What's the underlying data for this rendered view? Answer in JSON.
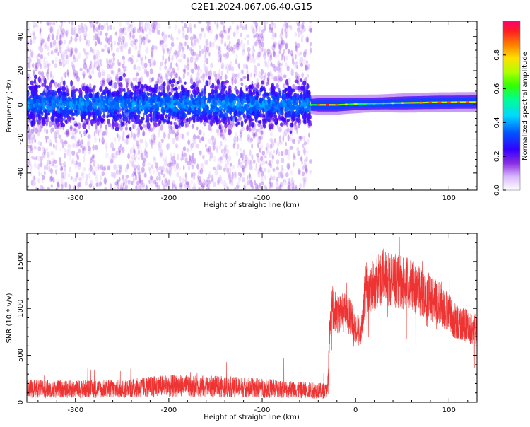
{
  "title": "C2E1.2024.067.06.40.G15",
  "chart_data": [
    {
      "type": "heatmap",
      "xlabel": "Height of straight line (km)",
      "ylabel": "Frequency (Hz)",
      "xlim": [
        -352,
        130
      ],
      "ylim": [
        -50,
        49
      ],
      "xticks": [
        -300,
        -200,
        -100,
        0,
        100
      ],
      "yticks": [
        -40,
        -20,
        0,
        20,
        40
      ],
      "noise_region_x": [
        -352,
        -48
      ],
      "signal_ridge": {
        "x": [
          -48,
          -40,
          -30,
          -20,
          -10,
          0,
          10,
          20,
          30,
          40,
          50,
          60,
          70,
          80,
          90,
          100,
          110,
          120,
          130
        ],
        "freq": [
          0,
          0,
          0,
          0,
          0.2,
          0.5,
          0.7,
          0.8,
          0.9,
          1.0,
          1.1,
          1.2,
          1.3,
          1.4,
          1.5,
          1.5,
          1.6,
          1.6,
          1.7
        ],
        "amplitude": [
          0.6,
          0.9,
          0.95,
          0.9,
          0.75,
          0.7,
          0.6,
          0.55,
          0.6,
          0.7,
          0.8,
          0.85,
          0.85,
          0.9,
          0.9,
          0.9,
          0.9,
          0.9,
          0.9
        ]
      },
      "colorbar": {
        "label": "Normalized spectral amplitude",
        "range": [
          0,
          1
        ],
        "ticks": [
          "0.0",
          "0.2",
          "0.4",
          "0.6",
          "0.8"
        ]
      }
    },
    {
      "type": "line",
      "xlabel": "Height of straight line (km)",
      "ylabel": "SNR (10 * v/v)",
      "xlim": [
        -352,
        130
      ],
      "ylim": [
        0,
        1800
      ],
      "xticks": [
        -300,
        -200,
        -100,
        0,
        100
      ],
      "yticks": [
        0,
        500,
        1000,
        1500
      ],
      "color": "#ee3333",
      "series": [
        {
          "x": [
            -352,
            -300,
            -250,
            -200,
            -150,
            -100,
            -50,
            -30,
            -28,
            -25,
            -20,
            -10,
            0,
            5,
            10,
            20,
            30,
            40,
            50,
            60,
            70,
            80,
            90,
            100,
            110,
            120,
            130
          ],
          "values": [
            180,
            175,
            180,
            220,
            210,
            190,
            160,
            150,
            750,
            1100,
            1000,
            1050,
            850,
            800,
            1300,
            1350,
            1450,
            1400,
            1380,
            1330,
            1280,
            1200,
            1150,
            1020,
            900,
            870,
            820
          ]
        }
      ]
    }
  ]
}
